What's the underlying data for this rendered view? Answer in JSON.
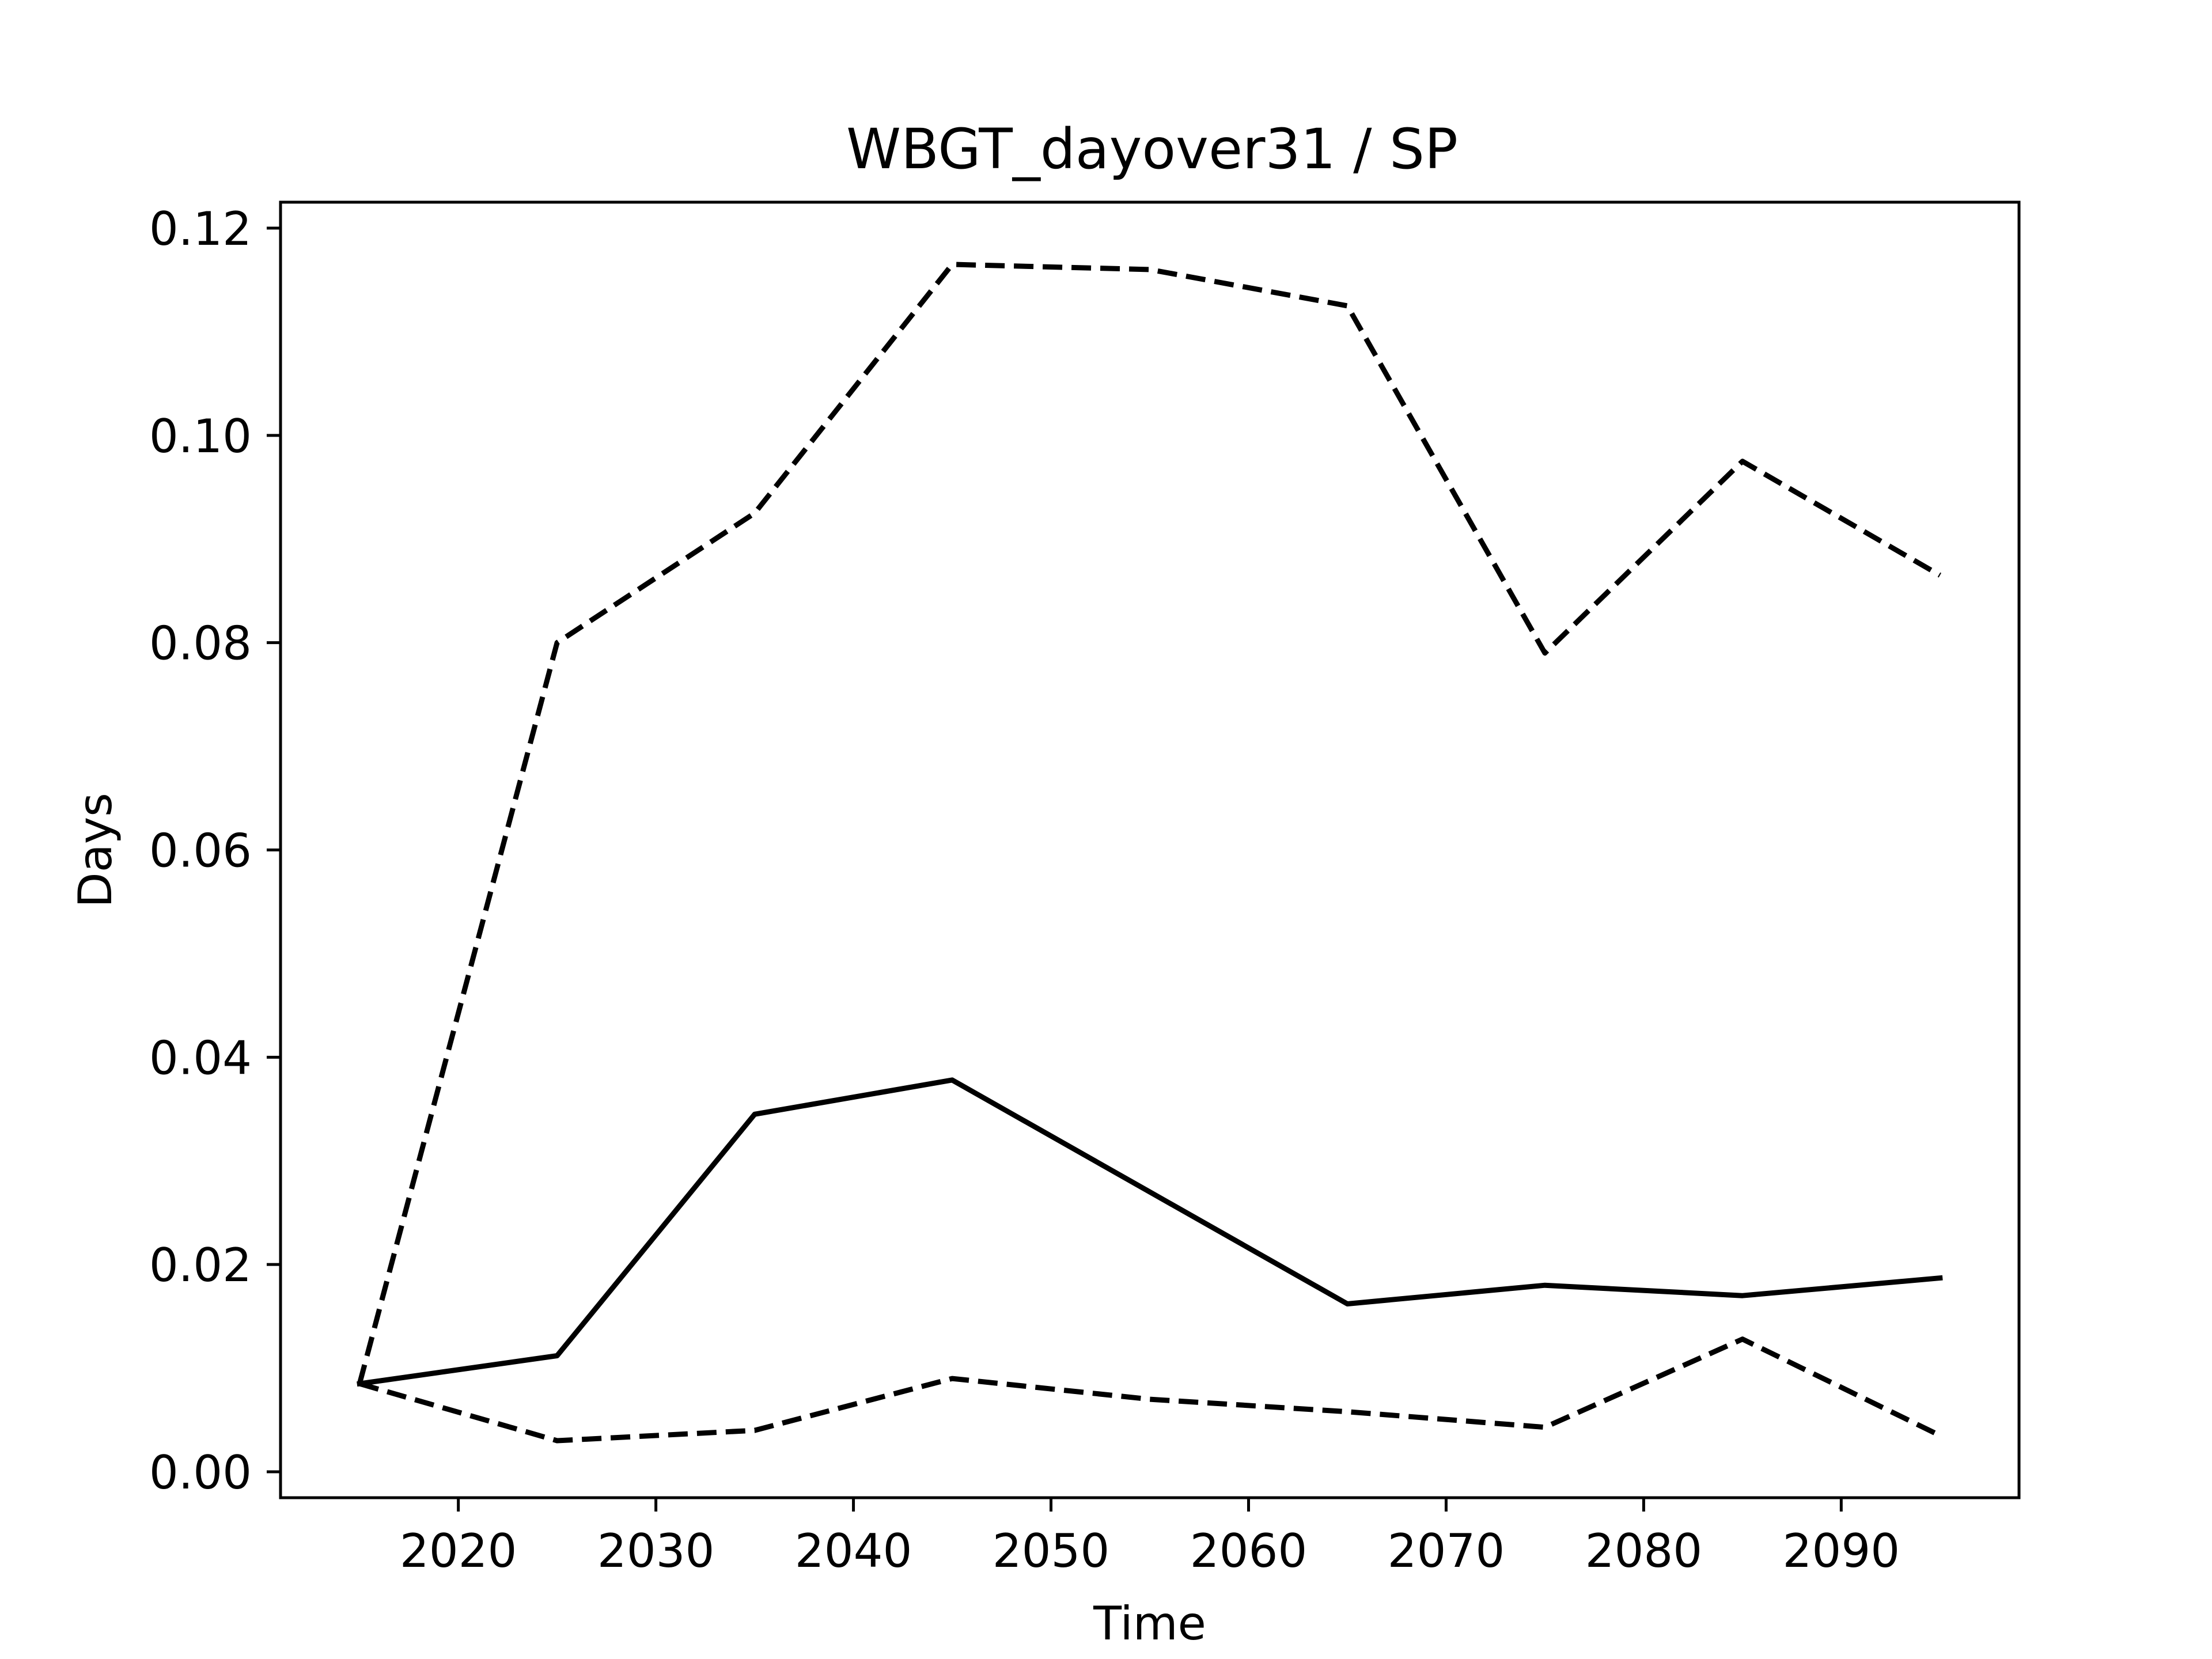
{
  "chart_data": {
    "type": "line",
    "title": "WBGT_dayover31 / SP",
    "xlabel": "Time",
    "ylabel": "Days",
    "xlim": [
      2011,
      2099
    ],
    "ylim": [
      -0.0025,
      0.1225
    ],
    "grid": false,
    "legend": "none",
    "x_ticks": [
      2020,
      2030,
      2040,
      2050,
      2060,
      2070,
      2080,
      2090
    ],
    "x_tick_labels": [
      "2020",
      "2030",
      "2040",
      "2050",
      "2060",
      "2070",
      "2080",
      "2090"
    ],
    "y_ticks": [
      0.0,
      0.02,
      0.04,
      0.06,
      0.08,
      0.1,
      0.12
    ],
    "y_tick_labels": [
      "0.00",
      "0.02",
      "0.04",
      "0.06",
      "0.08",
      "0.10",
      "0.12"
    ],
    "x": [
      2015,
      2025,
      2035,
      2045,
      2055,
      2065,
      2075,
      2085,
      2095
    ],
    "series": [
      {
        "line_style": "solid",
        "color": "#000000",
        "values": [
          0.0085,
          0.0112,
          0.0345,
          0.0378,
          0.027,
          0.0162,
          0.018,
          0.017,
          0.0187
        ]
      },
      {
        "line_style": "dashed",
        "color": "#000000",
        "values": [
          0.0085,
          0.08,
          0.0925,
          0.1165,
          0.116,
          0.1125,
          0.079,
          0.0975,
          0.0865
        ]
      },
      {
        "line_style": "dashed",
        "color": "#000000",
        "values": [
          0.0085,
          0.003,
          0.004,
          0.009,
          0.007,
          0.0058,
          0.0043,
          0.0128,
          0.0035
        ]
      }
    ]
  }
}
